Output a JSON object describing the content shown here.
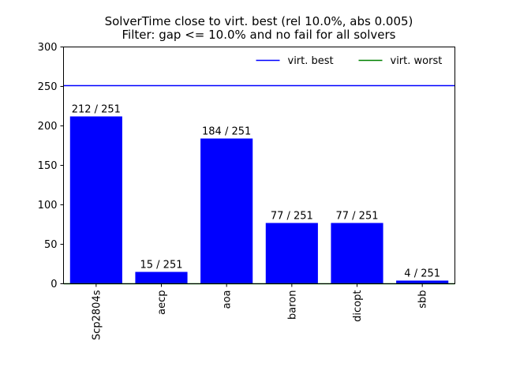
{
  "chart_data": {
    "type": "bar",
    "title": "SolverTime close to virt. best (rel 10.0%, abs 0.005)",
    "subtitle": "Filter: gap <= 10.0% and no fail for all solvers",
    "xlabel": "",
    "ylabel": "",
    "ylim": [
      0,
      300
    ],
    "yticks": [
      0,
      50,
      100,
      150,
      200,
      250,
      300
    ],
    "categories": [
      "Scp2804s",
      "aecp",
      "aoa",
      "baron",
      "dicopt",
      "sbb"
    ],
    "values": [
      212,
      15,
      184,
      77,
      77,
      4
    ],
    "bar_labels": [
      "212 / 251",
      "15 / 251",
      "184 / 251",
      "77 / 251",
      "77 / 251",
      "4 / 251"
    ],
    "bar_color": "#0000ff",
    "reference_lines": [
      {
        "name": "virt. best",
        "value": 251,
        "color": "#0000ff"
      },
      {
        "name": "virt. worst",
        "value": 0,
        "color": "#008000"
      }
    ],
    "legend_position": "top-right",
    "grid": false
  }
}
